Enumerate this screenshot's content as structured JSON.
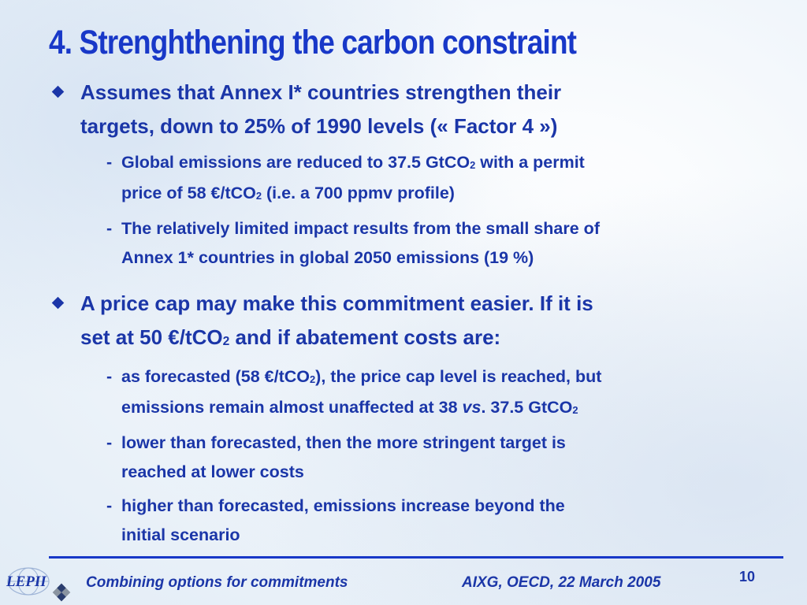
{
  "slide": {
    "title": "4. Strenghthening the carbon constraint",
    "bullet1": {
      "line1": "Assumes that Annex I* countries strengthen their",
      "line2": "targets, down to 25% of 1990 levels (« Factor 4 »)",
      "sub1": {
        "a": "Global emissions are reduced to 37.5 GtCO",
        "a_sub": "2",
        "b": " with a permit",
        "c": "price of 58 €/tCO",
        "c_sub": "2",
        "d": " (i.e. a 700 ppmv profile)"
      },
      "sub2": {
        "line1": "The relatively limited impact results from the small share of",
        "line2": "Annex 1* countries in global 2050 emissions (19 %)"
      }
    },
    "bullet2": {
      "line1": "A price cap may make this commitment easier. If it is",
      "line2a": "set at 50 €/tCO",
      "line2_sub": "2",
      "line2b": " and if abatement costs are:",
      "sub1": {
        "a": "as forecasted (58 €/tCO",
        "a_sub": "2",
        "b": "), the price cap level is reached, but",
        "c": "emissions remain almost unaffected at 38 ",
        "vs": "vs",
        "d": ". 37.5 GtCO",
        "d_sub": "2"
      },
      "sub2": {
        "line1": "lower than forecasted, then the more stringent target is",
        "line2": "reached at lower costs"
      },
      "sub3": {
        "line1": "higher than forecasted, emissions increase beyond the",
        "line2": "initial scenario"
      }
    },
    "dash": "-"
  },
  "footer": {
    "left": "Combining options for commitments",
    "middle": "AIXG, OECD, 22 March 2005",
    "page_number": "10",
    "logo_text": "LEPII",
    "logo_icon": "globe-logo-icon"
  },
  "colors": {
    "text": "#1b36a8",
    "title": "#1838c8",
    "rule": "#1838c8"
  }
}
